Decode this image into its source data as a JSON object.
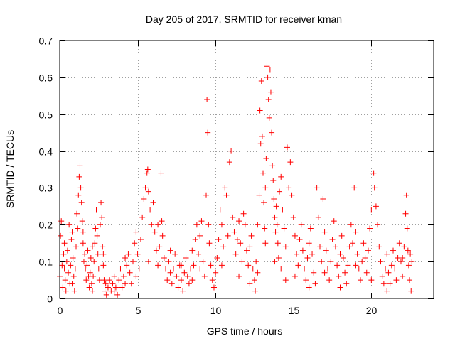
{
  "chart_data": {
    "type": "scatter",
    "title": "Day 205 of 2017, SRMTID for receiver kman",
    "xlabel": "GPS time / hours",
    "ylabel": "SRMTID / TECUs",
    "xlim": [
      0,
      24
    ],
    "ylim": [
      0,
      0.7
    ],
    "xticks": [
      0,
      5,
      10,
      15,
      20
    ],
    "xtick_labels": [
      "0",
      "5",
      "10",
      "15",
      "20"
    ],
    "yticks": [
      0,
      0.1,
      0.2,
      0.3,
      0.4,
      0.5,
      0.6,
      0.7
    ],
    "ytick_labels": [
      "0",
      "0.1",
      "0.2",
      "0.3",
      "0.4",
      "0.5",
      "0.6",
      "0.7"
    ],
    "grid": true,
    "legend": "none",
    "marker": "plus",
    "marker_color": "#ff0000",
    "series": [
      {
        "name": "SRMTID",
        "points": [
          [
            0.0,
            0.06
          ],
          [
            0.05,
            0.17
          ],
          [
            0.1,
            0.21
          ],
          [
            0.15,
            0.09
          ],
          [
            0.2,
            0.03
          ],
          [
            0.25,
            0.12
          ],
          [
            0.3,
            0.15
          ],
          [
            0.35,
            0.05
          ],
          [
            0.4,
            0.02
          ],
          [
            0.45,
            0.1
          ],
          [
            0.5,
            0.13
          ],
          [
            0.55,
            0.07
          ],
          [
            0.6,
            0.2
          ],
          [
            0.65,
            0.04
          ],
          [
            0.7,
            0.09
          ],
          [
            0.75,
            0.16
          ],
          [
            0.8,
            0.18
          ],
          [
            0.85,
            0.11
          ],
          [
            0.9,
            0.06
          ],
          [
            0.95,
            0.02
          ],
          [
            1.0,
            0.08
          ],
          [
            1.05,
            0.14
          ],
          [
            1.1,
            0.23
          ],
          [
            1.15,
            0.19
          ],
          [
            1.2,
            0.28
          ],
          [
            1.25,
            0.33
          ],
          [
            1.3,
            0.36
          ],
          [
            1.35,
            0.3
          ],
          [
            1.4,
            0.26
          ],
          [
            1.45,
            0.21
          ],
          [
            1.5,
            0.15
          ],
          [
            1.55,
            0.1
          ],
          [
            1.6,
            0.12
          ],
          [
            1.65,
            0.08
          ],
          [
            1.7,
            0.05
          ],
          [
            1.75,
            0.09
          ],
          [
            1.8,
            0.13
          ],
          [
            1.85,
            0.06
          ],
          [
            1.9,
            0.03
          ],
          [
            1.95,
            0.07
          ],
          [
            2.0,
            0.11
          ],
          [
            2.05,
            0.04
          ],
          [
            2.1,
            0.02
          ],
          [
            2.15,
            0.06
          ],
          [
            2.2,
            0.1
          ],
          [
            2.25,
            0.15
          ],
          [
            2.3,
            0.19
          ],
          [
            2.35,
            0.24
          ],
          [
            2.4,
            0.17
          ],
          [
            2.45,
            0.12
          ],
          [
            2.5,
            0.08
          ],
          [
            2.55,
            0.05
          ],
          [
            2.6,
            0.2
          ],
          [
            2.65,
            0.26
          ],
          [
            2.7,
            0.22
          ],
          [
            2.75,
            0.14
          ],
          [
            2.8,
            0.09
          ],
          [
            2.85,
            0.05
          ],
          [
            2.9,
            0.02
          ],
          [
            2.95,
            0.04
          ],
          [
            3.0,
            0.01
          ],
          [
            3.1,
            0.03
          ],
          [
            3.2,
            0.05
          ],
          [
            3.3,
            0.02
          ],
          [
            3.4,
            0.04
          ],
          [
            3.5,
            0.06
          ],
          [
            3.6,
            0.03
          ],
          [
            3.7,
            0.01
          ],
          [
            3.8,
            0.05
          ],
          [
            3.9,
            0.08
          ],
          [
            4.0,
            0.03
          ],
          [
            4.1,
            0.06
          ],
          [
            4.2,
            0.04
          ],
          [
            4.3,
            0.09
          ],
          [
            4.4,
            0.12
          ],
          [
            4.5,
            0.07
          ],
          [
            4.6,
            0.04
          ],
          [
            4.7,
            0.1
          ],
          [
            4.8,
            0.15
          ],
          [
            4.9,
            0.18
          ],
          [
            5.0,
            0.12
          ],
          [
            5.1,
            0.08
          ],
          [
            5.2,
            0.16
          ],
          [
            5.3,
            0.22
          ],
          [
            5.4,
            0.27
          ],
          [
            5.5,
            0.3
          ],
          [
            5.6,
            0.34
          ],
          [
            5.65,
            0.35
          ],
          [
            5.7,
            0.29
          ],
          [
            5.8,
            0.24
          ],
          [
            5.9,
            0.2
          ],
          [
            6.0,
            0.26
          ],
          [
            6.1,
            0.18
          ],
          [
            6.2,
            0.13
          ],
          [
            6.3,
            0.09
          ],
          [
            6.4,
            0.14
          ],
          [
            6.5,
            0.34
          ],
          [
            6.55,
            0.21
          ],
          [
            6.6,
            0.17
          ],
          [
            6.7,
            0.11
          ],
          [
            6.8,
            0.08
          ],
          [
            6.9,
            0.05
          ],
          [
            7.0,
            0.1
          ],
          [
            7.1,
            0.07
          ],
          [
            7.2,
            0.04
          ],
          [
            7.3,
            0.08
          ],
          [
            7.4,
            0.12
          ],
          [
            7.5,
            0.06
          ],
          [
            7.6,
            0.03
          ],
          [
            7.7,
            0.09
          ],
          [
            7.8,
            0.05
          ],
          [
            7.9,
            0.02
          ],
          [
            8.0,
            0.07
          ],
          [
            8.1,
            0.11
          ],
          [
            8.2,
            0.06
          ],
          [
            8.3,
            0.04
          ],
          [
            8.4,
            0.08
          ],
          [
            8.5,
            0.13
          ],
          [
            8.6,
            0.09
          ],
          [
            8.7,
            0.16
          ],
          [
            8.8,
            0.2
          ],
          [
            8.9,
            0.12
          ],
          [
            9.0,
            0.17
          ],
          [
            9.1,
            0.21
          ],
          [
            9.2,
            0.1
          ],
          [
            9.3,
            0.06
          ],
          [
            9.4,
            0.28
          ],
          [
            9.45,
            0.54
          ],
          [
            9.5,
            0.45
          ],
          [
            9.55,
            0.2
          ],
          [
            9.6,
            0.15
          ],
          [
            9.7,
            0.09
          ],
          [
            9.8,
            0.05
          ],
          [
            9.9,
            0.03
          ],
          [
            10.0,
            0.07
          ],
          [
            10.1,
            0.11
          ],
          [
            10.2,
            0.16
          ],
          [
            10.3,
            0.24
          ],
          [
            10.4,
            0.2
          ],
          [
            10.5,
            0.14
          ],
          [
            10.6,
            0.3
          ],
          [
            10.7,
            0.28
          ],
          [
            10.8,
            0.17
          ],
          [
            10.9,
            0.37
          ],
          [
            11.0,
            0.4
          ],
          [
            11.1,
            0.22
          ],
          [
            11.2,
            0.18
          ],
          [
            11.3,
            0.12
          ],
          [
            11.4,
            0.16
          ],
          [
            11.5,
            0.21
          ],
          [
            11.6,
            0.15
          ],
          [
            11.7,
            0.1
          ],
          [
            11.8,
            0.23
          ],
          [
            11.9,
            0.2
          ],
          [
            12.0,
            0.13
          ],
          [
            12.1,
            0.09
          ],
          [
            12.2,
            0.14
          ],
          [
            12.3,
            0.17
          ],
          [
            12.4,
            0.08
          ],
          [
            12.5,
            0.05
          ],
          [
            12.55,
            0.02
          ],
          [
            12.6,
            0.1
          ],
          [
            12.7,
            0.2
          ],
          [
            12.8,
            0.28
          ],
          [
            12.85,
            0.51
          ],
          [
            12.9,
            0.42
          ],
          [
            12.95,
            0.59
          ],
          [
            13.0,
            0.44
          ],
          [
            13.05,
            0.34
          ],
          [
            13.1,
            0.26
          ],
          [
            13.15,
            0.19
          ],
          [
            13.2,
            0.3
          ],
          [
            13.25,
            0.38
          ],
          [
            13.3,
            0.63
          ],
          [
            13.35,
            0.6
          ],
          [
            13.4,
            0.54
          ],
          [
            13.45,
            0.49
          ],
          [
            13.5,
            0.62
          ],
          [
            13.55,
            0.56
          ],
          [
            13.6,
            0.45
          ],
          [
            13.65,
            0.36
          ],
          [
            13.7,
            0.32
          ],
          [
            13.75,
            0.27
          ],
          [
            13.8,
            0.22
          ],
          [
            13.85,
            0.18
          ],
          [
            13.9,
            0.25
          ],
          [
            13.95,
            0.2
          ],
          [
            14.0,
            0.15
          ],
          [
            14.05,
            0.11
          ],
          [
            14.1,
            0.29
          ],
          [
            14.2,
            0.33
          ],
          [
            14.3,
            0.24
          ],
          [
            14.4,
            0.19
          ],
          [
            14.5,
            0.14
          ],
          [
            14.6,
            0.41
          ],
          [
            14.7,
            0.3
          ],
          [
            14.8,
            0.37
          ],
          [
            14.9,
            0.28
          ],
          [
            15.0,
            0.22
          ],
          [
            15.1,
            0.17
          ],
          [
            15.2,
            0.12
          ],
          [
            15.3,
            0.09
          ],
          [
            15.4,
            0.16
          ],
          [
            15.5,
            0.2
          ],
          [
            15.6,
            0.13
          ],
          [
            15.7,
            0.08
          ],
          [
            15.8,
            0.05
          ],
          [
            15.9,
            0.11
          ],
          [
            16.0,
            0.15
          ],
          [
            16.1,
            0.19
          ],
          [
            16.2,
            0.12
          ],
          [
            16.3,
            0.07
          ],
          [
            16.4,
            0.04
          ],
          [
            16.5,
            0.3
          ],
          [
            16.6,
            0.22
          ],
          [
            16.7,
            0.14
          ],
          [
            16.8,
            0.1
          ],
          [
            16.9,
            0.27
          ],
          [
            17.0,
            0.18
          ],
          [
            17.1,
            0.13
          ],
          [
            17.2,
            0.08
          ],
          [
            17.3,
            0.05
          ],
          [
            17.4,
            0.1
          ],
          [
            17.5,
            0.16
          ],
          [
            17.6,
            0.21
          ],
          [
            17.7,
            0.14
          ],
          [
            17.8,
            0.09
          ],
          [
            17.9,
            0.06
          ],
          [
            18.0,
            0.12
          ],
          [
            18.1,
            0.17
          ],
          [
            18.2,
            0.11
          ],
          [
            18.3,
            0.07
          ],
          [
            18.4,
            0.04
          ],
          [
            18.5,
            0.09
          ],
          [
            18.6,
            0.14
          ],
          [
            18.7,
            0.2
          ],
          [
            18.8,
            0.15
          ],
          [
            18.9,
            0.3
          ],
          [
            19.0,
            0.18
          ],
          [
            19.1,
            0.12
          ],
          [
            19.2,
            0.08
          ],
          [
            19.3,
            0.05
          ],
          [
            19.4,
            0.1
          ],
          [
            19.5,
            0.15
          ],
          [
            19.6,
            0.11
          ],
          [
            19.7,
            0.07
          ],
          [
            19.8,
            0.13
          ],
          [
            19.9,
            0.19
          ],
          [
            20.0,
            0.24
          ],
          [
            20.1,
            0.34
          ],
          [
            20.15,
            0.34
          ],
          [
            20.2,
            0.3
          ],
          [
            20.3,
            0.25
          ],
          [
            20.4,
            0.2
          ],
          [
            20.5,
            0.14
          ],
          [
            20.6,
            0.1
          ],
          [
            20.7,
            0.06
          ],
          [
            20.8,
            0.04
          ],
          [
            20.9,
            0.08
          ],
          [
            21.0,
            0.12
          ],
          [
            21.1,
            0.07
          ],
          [
            21.2,
            0.04
          ],
          [
            21.3,
            0.09
          ],
          [
            21.4,
            0.13
          ],
          [
            21.5,
            0.08
          ],
          [
            21.6,
            0.05
          ],
          [
            21.7,
            0.11
          ],
          [
            21.8,
            0.15
          ],
          [
            21.9,
            0.1
          ],
          [
            22.0,
            0.06
          ],
          [
            22.1,
            0.14
          ],
          [
            22.2,
            0.23
          ],
          [
            22.25,
            0.28
          ],
          [
            22.3,
            0.19
          ],
          [
            22.35,
            0.13
          ],
          [
            22.4,
            0.09
          ],
          [
            22.45,
            0.05
          ],
          [
            22.5,
            0.12
          ],
          [
            22.55,
            0.02
          ],
          [
            22.6,
            0.1
          ],
          [
            0.3,
            0.08
          ],
          [
            0.8,
            0.04
          ],
          [
            1.5,
            0.18
          ],
          [
            2.1,
            0.14
          ],
          [
            2.8,
            0.12
          ],
          [
            3.5,
            0.02
          ],
          [
            4.2,
            0.11
          ],
          [
            4.9,
            0.06
          ],
          [
            5.7,
            0.1
          ],
          [
            6.3,
            0.2
          ],
          [
            7.1,
            0.13
          ],
          [
            7.8,
            0.09
          ],
          [
            8.5,
            0.05
          ],
          [
            9.0,
            0.08
          ],
          [
            10.4,
            0.09
          ],
          [
            11.5,
            0.06
          ],
          [
            12.2,
            0.04
          ],
          [
            13.2,
            0.15
          ],
          [
            14.2,
            0.08
          ],
          [
            15.1,
            0.06
          ],
          [
            16.0,
            0.03
          ],
          [
            17.0,
            0.07
          ],
          [
            18.0,
            0.03
          ],
          [
            19.0,
            0.09
          ],
          [
            20.0,
            0.05
          ],
          [
            21.0,
            0.02
          ],
          [
            22.0,
            0.11
          ],
          [
            12.7,
            0.07
          ],
          [
            13.8,
            0.1
          ],
          [
            14.5,
            0.05
          ]
        ]
      }
    ]
  }
}
